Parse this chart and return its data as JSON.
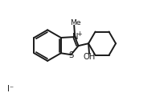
{
  "bg_color": "#ffffff",
  "line_color": "#1a1a1a",
  "line_width": 1.4,
  "text_color": "#1a1a1a",
  "figsize": [
    2.05,
    1.21
  ],
  "dpi": 100,
  "xlim": [
    0,
    10.5
  ],
  "ylim": [
    0,
    6.2
  ]
}
